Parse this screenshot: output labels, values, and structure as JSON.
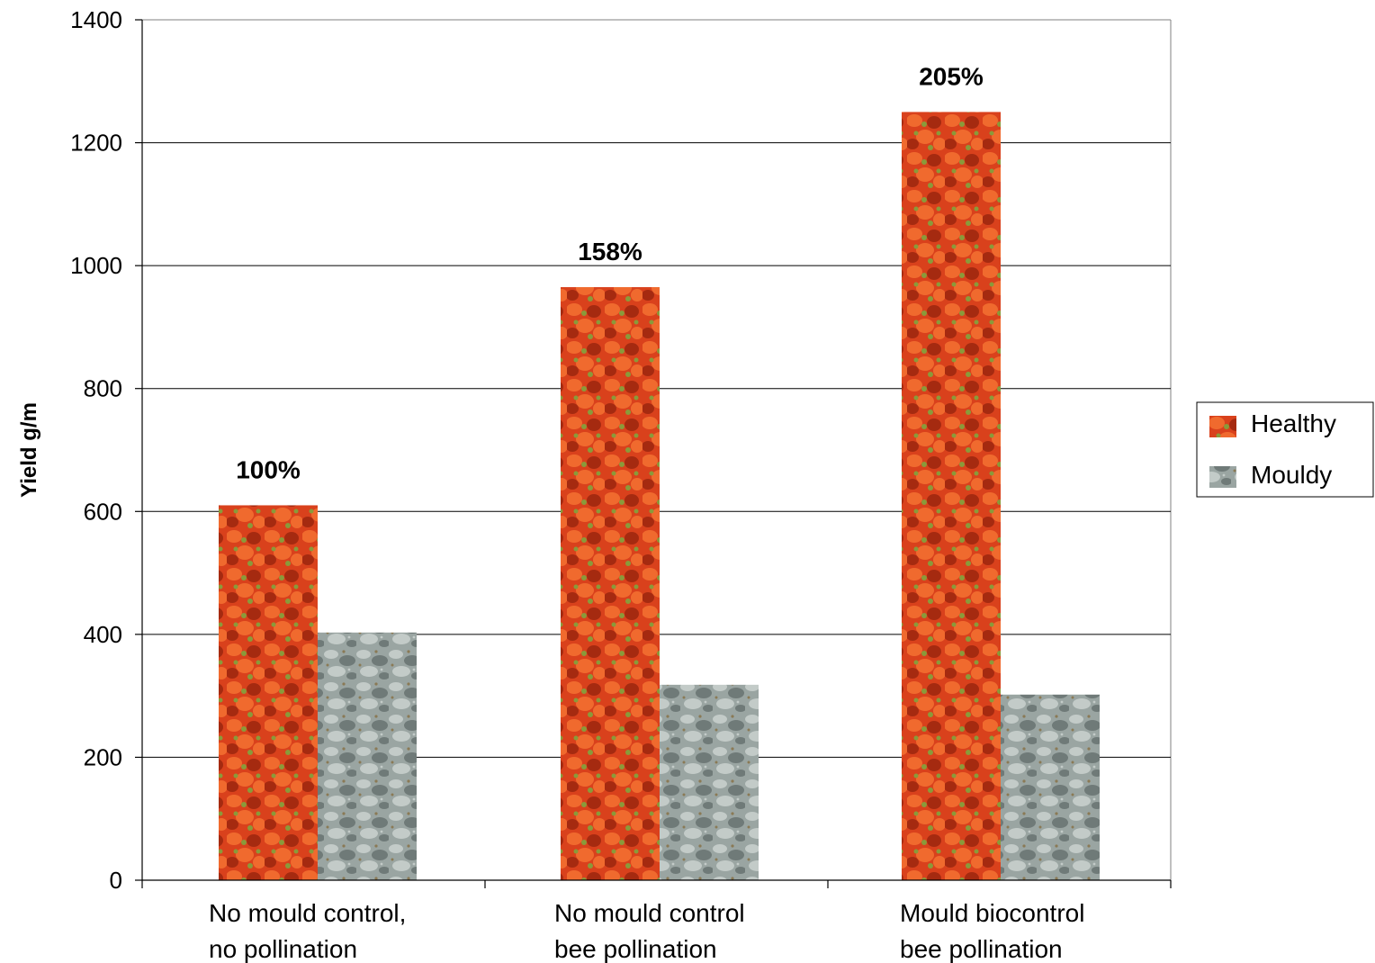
{
  "colors": {
    "healthy_base": "#d9411c",
    "healthy_dark": "#a52a10",
    "healthy_light": "#f06a2e",
    "healthy_green": "#8a9a3a",
    "mouldy_base": "#9aa5a2",
    "mouldy_dark": "#6f7a78",
    "mouldy_light": "#c3cbc8",
    "mouldy_brown": "#8a7a55",
    "grid": "#000000",
    "plot_border": "#808080"
  },
  "chart_data": {
    "type": "bar",
    "categories": [
      [
        "No mould control,",
        "no pollination"
      ],
      [
        "No mould control",
        "bee pollination"
      ],
      [
        "Mould biocontrol",
        "bee pollination"
      ]
    ],
    "series": [
      {
        "name": "Healthy",
        "values": [
          610,
          965,
          1250
        ],
        "pattern": "healthy"
      },
      {
        "name": "Mouldy",
        "values": [
          403,
          318,
          302
        ],
        "pattern": "mouldy"
      }
    ],
    "data_labels": [
      "100%",
      "158%",
      "205%"
    ],
    "ylabel": "Yield g/m",
    "xlabel": "",
    "ylim": [
      0,
      1400
    ],
    "yticks": [
      0,
      200,
      400,
      600,
      800,
      1000,
      1200,
      1400
    ],
    "grid": true,
    "legend_position": "right"
  }
}
